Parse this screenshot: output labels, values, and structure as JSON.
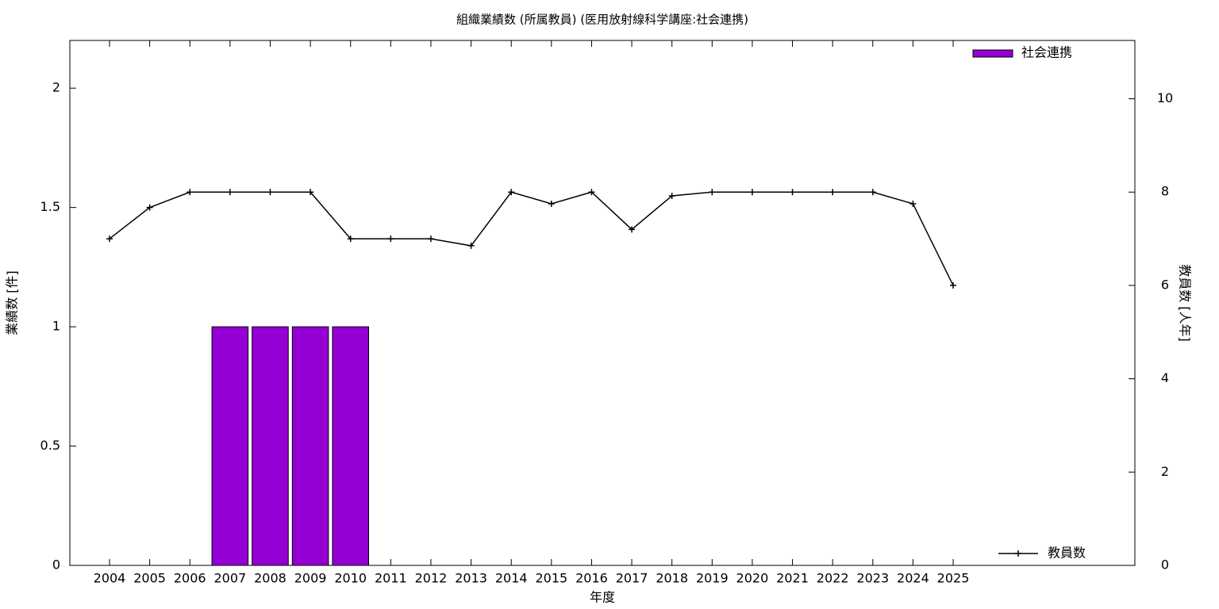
{
  "chart_data": {
    "type": "bar-line",
    "title": "組織業績数 (所属教員) (医用放射線科学講座:社会連携)",
    "x_label": "年度",
    "y_label": "業績数 [件]",
    "y2_label": "教員数 [人年]",
    "categories": [
      "2004",
      "2005",
      "2006",
      "2007",
      "2008",
      "2009",
      "2010",
      "2011",
      "2012",
      "2013",
      "2014",
      "2015",
      "2016",
      "2017",
      "2018",
      "2019",
      "2020",
      "2021",
      "2022",
      "2023",
      "2024",
      "2025"
    ],
    "series": [
      {
        "name": "社会連携",
        "type": "bar",
        "color": "#9400d3",
        "values": [
          0,
          0,
          0,
          1,
          1,
          1,
          1,
          0,
          0,
          0,
          0,
          0,
          0,
          0,
          0,
          0,
          0,
          0,
          0,
          0,
          0,
          0
        ]
      },
      {
        "name": "教員数",
        "type": "line",
        "axis": "y2",
        "color": "#000000",
        "values": [
          7,
          7.67,
          8,
          8,
          8,
          8,
          7,
          7,
          7,
          6.85,
          8,
          7.75,
          8,
          7.2,
          7.92,
          8,
          8,
          8,
          8,
          8,
          7.75,
          6
        ]
      }
    ],
    "ylim": [
      0,
      2.2
    ],
    "yticks": [
      0,
      0.5,
      1,
      1.5,
      2
    ],
    "y2lim": [
      0,
      11.25
    ],
    "y2ticks": [
      0,
      2,
      4,
      6,
      8,
      10
    ],
    "grid": false
  }
}
